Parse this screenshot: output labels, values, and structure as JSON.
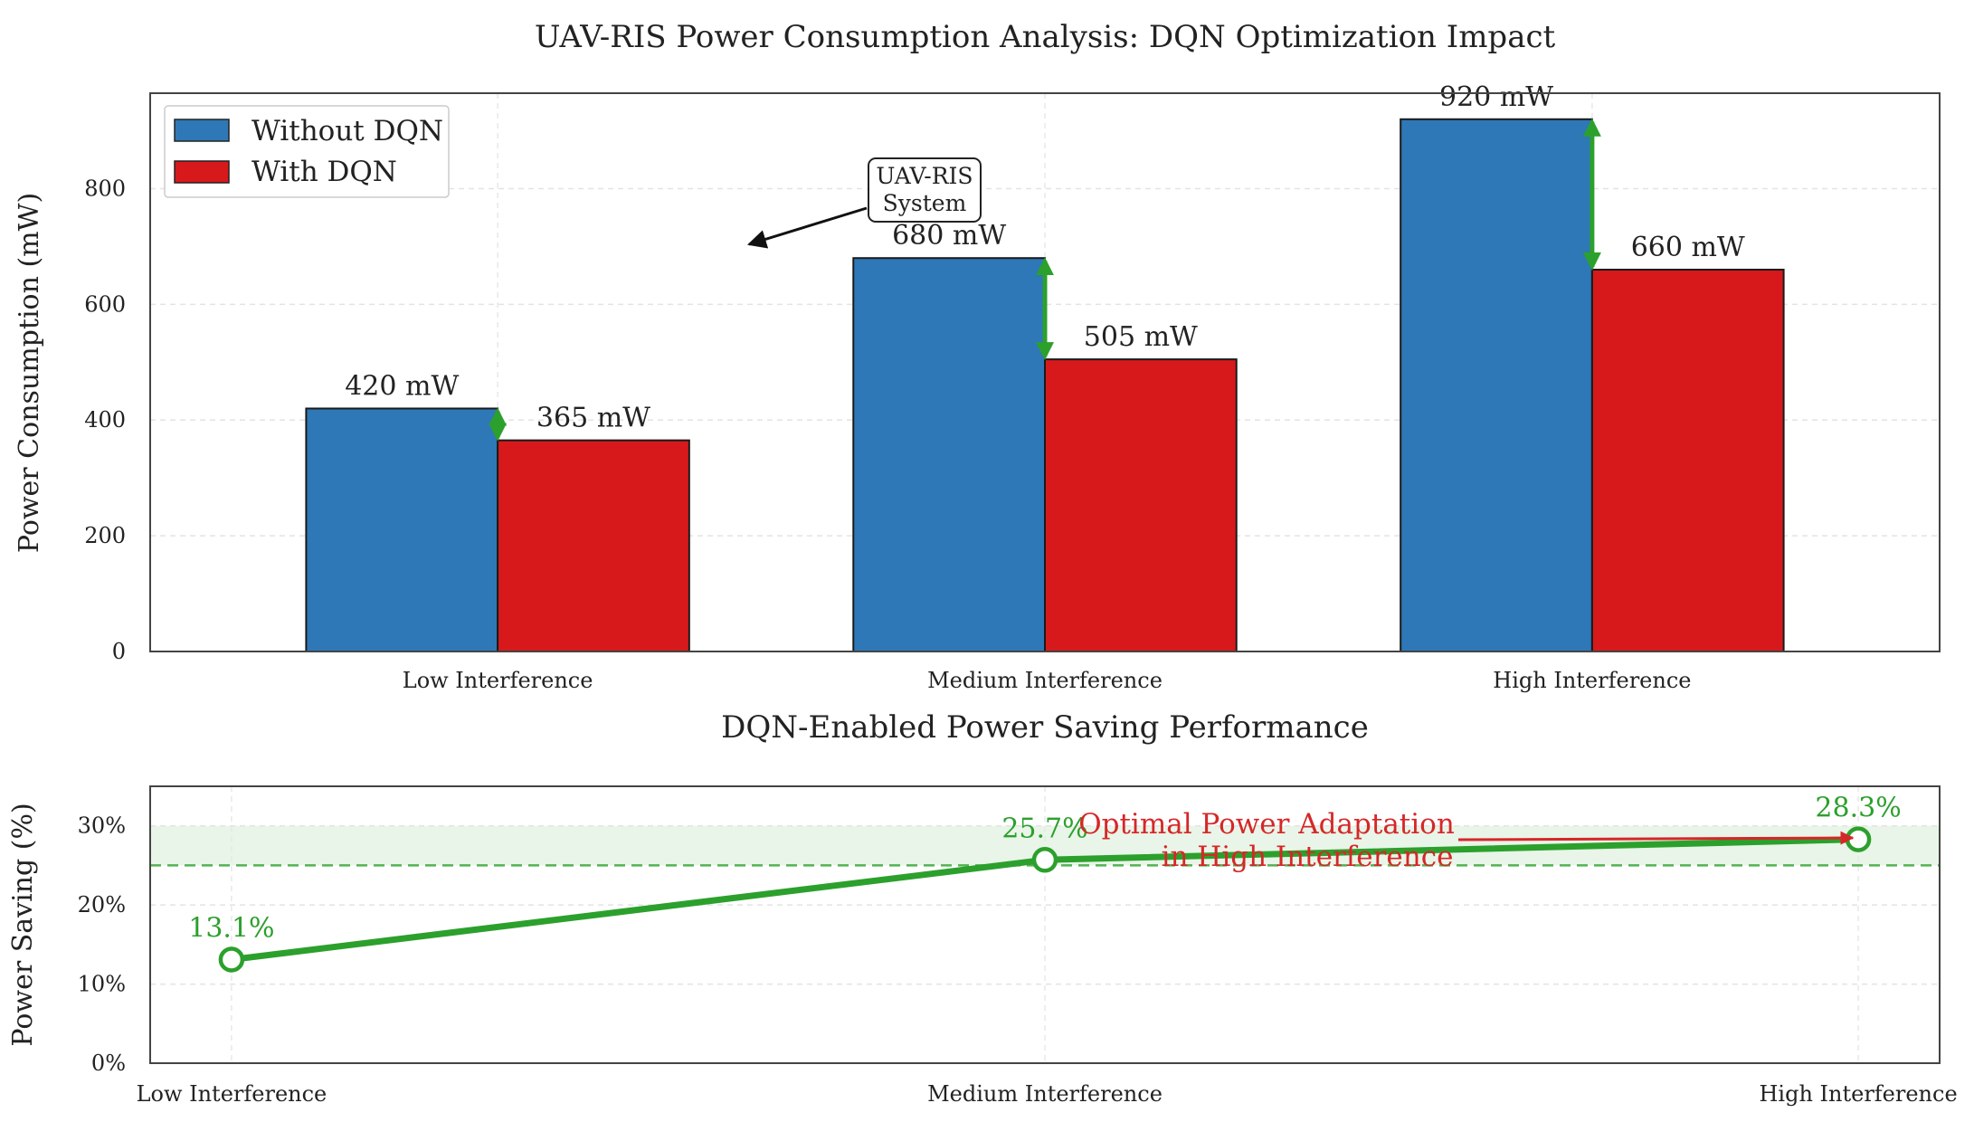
{
  "chart_data": [
    {
      "type": "bar",
      "title": "UAV-RIS Power Consumption Analysis: DQN Optimization Impact",
      "xlabel": "",
      "ylabel": "Power Consumption (mW)",
      "categories": [
        "Low Interference",
        "Medium Interference",
        "High Interference"
      ],
      "series": [
        {
          "name": "Without DQN",
          "values": [
            420,
            680,
            920
          ],
          "labels": [
            "420 mW",
            "680 mW",
            "920 mW"
          ],
          "color": "#2e78b7"
        },
        {
          "name": "With DQN",
          "values": [
            365,
            505,
            660
          ],
          "labels": [
            "365 mW",
            "505 mW",
            "660 mW"
          ],
          "color": "#d7191c"
        }
      ],
      "ylim": [
        0,
        965
      ],
      "yticks": [
        0,
        200,
        400,
        600,
        800
      ],
      "grid": true,
      "legend": "top-left",
      "annotation": {
        "text_lines": [
          "UAV-RIS",
          "System"
        ]
      },
      "difference_arrow_color": "#2ca02c"
    },
    {
      "type": "line",
      "title": "DQN-Enabled Power Saving Performance",
      "xlabel": "",
      "ylabel": "Power Saving (%)",
      "categories": [
        "Low Interference",
        "Medium Interference",
        "High Interference"
      ],
      "values": [
        13.1,
        25.7,
        28.3
      ],
      "labels": [
        "13.1%",
        "25.7%",
        "28.3%"
      ],
      "ylim": [
        0,
        35
      ],
      "yticks": [
        0,
        10,
        20,
        30
      ],
      "ytick_labels": [
        "0%",
        "10%",
        "20%",
        "30%"
      ],
      "target_band": [
        25,
        30
      ],
      "target_line": 25,
      "line_color": "#2ca02c",
      "annotation": {
        "text_lines": [
          "Optimal Power Adaptation",
          "in High Interference"
        ],
        "color": "#d62728"
      },
      "grid": true
    }
  ]
}
